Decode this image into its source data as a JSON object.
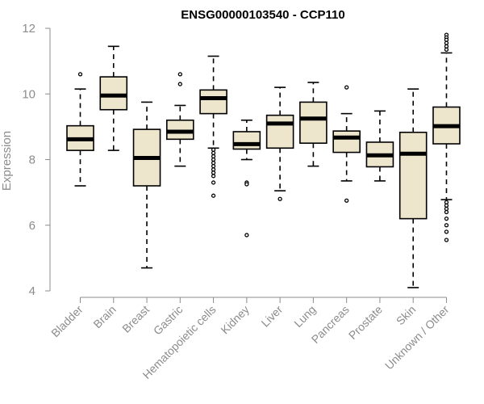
{
  "chart_data": {
    "type": "box",
    "title": "ENSG00000103540 - CCP110",
    "xlabel": "",
    "ylabel": "Expression",
    "ylim": [
      4,
      12
    ],
    "yticks": [
      4,
      6,
      8,
      10,
      12
    ],
    "grid": false,
    "legend": "none",
    "colors": {
      "box_fill": "#ede6cc",
      "box_stroke": "#000000",
      "median": "#000000",
      "axis": "#8c8c8c"
    },
    "categories": [
      "Bladder",
      "Brain",
      "Breast",
      "Gastric",
      "Hematopoietic cells",
      "Kidney",
      "Liver",
      "Lung",
      "Pancreas",
      "Prostate",
      "Skin",
      "Unknown / Other"
    ],
    "boxes": [
      {
        "category": "Bladder",
        "min": 7.2,
        "q1": 8.28,
        "median": 8.62,
        "q3": 9.03,
        "max": 10.15,
        "outliers": [
          10.6
        ]
      },
      {
        "category": "Brain",
        "min": 8.28,
        "q1": 9.52,
        "median": 9.95,
        "q3": 10.52,
        "max": 11.45,
        "outliers": []
      },
      {
        "category": "Breast",
        "min": 4.7,
        "q1": 7.2,
        "median": 8.05,
        "q3": 8.92,
        "max": 9.75,
        "outliers": []
      },
      {
        "category": "Gastric",
        "min": 7.8,
        "q1": 8.62,
        "median": 8.85,
        "q3": 9.2,
        "max": 9.65,
        "outliers": [
          10.6,
          10.3
        ]
      },
      {
        "category": "Hematopoietic cells",
        "min": 8.35,
        "q1": 9.4,
        "median": 9.87,
        "q3": 10.12,
        "max": 11.15,
        "outliers": [
          8.3,
          8.2,
          8.1,
          8.0,
          7.9,
          7.8,
          7.7,
          7.6,
          7.5,
          7.3,
          6.9
        ]
      },
      {
        "category": "Kidney",
        "min": 8.0,
        "q1": 8.32,
        "median": 8.47,
        "q3": 8.85,
        "max": 9.2,
        "outliers": [
          7.3,
          7.25,
          5.7
        ]
      },
      {
        "category": "Liver",
        "min": 7.05,
        "q1": 8.35,
        "median": 9.1,
        "q3": 9.35,
        "max": 10.2,
        "outliers": [
          6.8
        ]
      },
      {
        "category": "Lung",
        "min": 7.8,
        "q1": 8.5,
        "median": 9.25,
        "q3": 9.75,
        "max": 10.35,
        "outliers": []
      },
      {
        "category": "Pancreas",
        "min": 7.35,
        "q1": 8.22,
        "median": 8.67,
        "q3": 8.87,
        "max": 9.4,
        "outliers": [
          10.2,
          6.75
        ]
      },
      {
        "category": "Prostate",
        "min": 7.35,
        "q1": 7.78,
        "median": 8.13,
        "q3": 8.53,
        "max": 9.48,
        "outliers": []
      },
      {
        "category": "Skin",
        "min": 4.1,
        "q1": 6.2,
        "median": 8.18,
        "q3": 8.83,
        "max": 10.15,
        "outliers": []
      },
      {
        "category": "Unknown / Other",
        "min": 6.78,
        "q1": 8.48,
        "median": 9.02,
        "q3": 9.6,
        "max": 11.25,
        "outliers": [
          11.8,
          11.72,
          11.65,
          11.55,
          11.45,
          11.35,
          6.7,
          6.6,
          6.5,
          6.4,
          6.2,
          6.0,
          5.8,
          5.55
        ]
      }
    ]
  }
}
